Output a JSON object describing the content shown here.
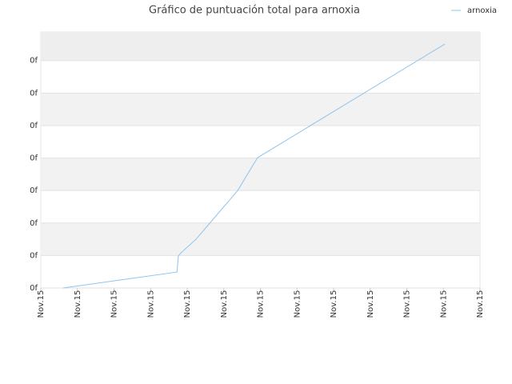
{
  "chart_data": {
    "type": "line",
    "title": "Gráfico de puntuación total para arnoxia",
    "x": [
      0.61,
      3.72,
      3.76,
      3.83,
      4.24,
      5.38,
      5.92,
      11.04
    ],
    "series": [
      {
        "name": "arnoxia",
        "color": "#8ec4ef",
        "values": [
          0,
          0.49,
          0.99,
          1.08,
          1.5,
          3.0,
          4.01,
          7.51
        ]
      }
    ],
    "xlim": [
      0,
      12
    ],
    "xticks": [
      {
        "value": 0,
        "label": "Nov.15"
      },
      {
        "value": 1,
        "label": "Nov.15"
      },
      {
        "value": 2,
        "label": "Nov.15"
      },
      {
        "value": 3,
        "label": "Nov.15"
      },
      {
        "value": 4,
        "label": "Nov.15"
      },
      {
        "value": 5,
        "label": "Nov.15"
      },
      {
        "value": 6,
        "label": "Nov.15"
      },
      {
        "value": 7,
        "label": "Nov.15"
      },
      {
        "value": 8,
        "label": "Nov.15"
      },
      {
        "value": 9,
        "label": "Nov.15"
      },
      {
        "value": 10,
        "label": "Nov.15"
      },
      {
        "value": 11,
        "label": "Nov.15"
      },
      {
        "value": 12,
        "label": "Nov.15"
      }
    ],
    "ylim": [
      0,
      7.88
    ],
    "yticks": [
      {
        "value": 0,
        "label": "0f"
      },
      {
        "value": 1,
        "label": "0f"
      },
      {
        "value": 2,
        "label": "0f"
      },
      {
        "value": 3,
        "label": "0f"
      },
      {
        "value": 4,
        "label": "0f"
      },
      {
        "value": 5,
        "label": "0f"
      },
      {
        "value": 6,
        "label": "0f"
      },
      {
        "value": 7,
        "label": "0f"
      }
    ],
    "grid": true,
    "legend": "top-right"
  }
}
